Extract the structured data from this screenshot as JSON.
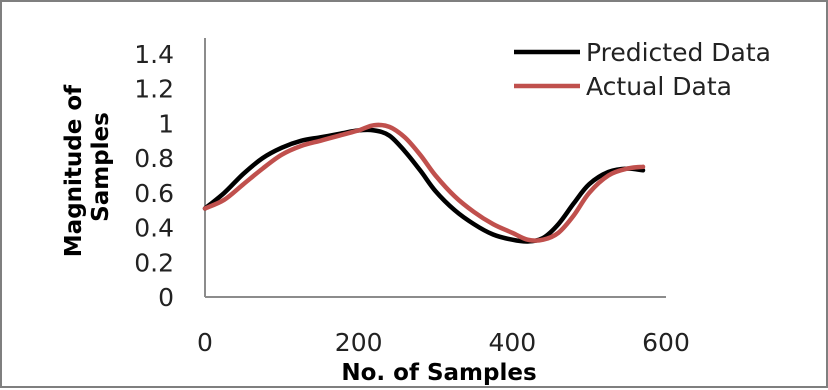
{
  "chart_data": {
    "type": "line",
    "title": "",
    "xlabel": "No. of Samples",
    "ylabel_lines": [
      "Magnitude of",
      "Samples"
    ],
    "xlim": [
      0,
      600
    ],
    "ylim": [
      0,
      1.4
    ],
    "x_ticks": [
      0,
      200,
      400,
      600
    ],
    "x_tick_labels": [
      "0",
      "200",
      "400",
      "600"
    ],
    "y_ticks": [
      0,
      0.2,
      0.4,
      0.6,
      0.8,
      1.0,
      1.2,
      1.4
    ],
    "y_tick_labels": [
      "0",
      "0.2",
      "0.4",
      "0.6",
      "0.8",
      "1",
      "1.2",
      "1.4"
    ],
    "grid": false,
    "legend_position": "top-right",
    "series": [
      {
        "name": "Predicted Data",
        "color": "#000000",
        "x": [
          0,
          25,
          50,
          75,
          100,
          125,
          150,
          175,
          200,
          220,
          240,
          260,
          280,
          300,
          325,
          350,
          375,
          400,
          420,
          440,
          460,
          480,
          500,
          525,
          550,
          570
        ],
        "y": [
          0.51,
          0.6,
          0.71,
          0.8,
          0.86,
          0.9,
          0.92,
          0.94,
          0.96,
          0.96,
          0.93,
          0.84,
          0.73,
          0.61,
          0.5,
          0.42,
          0.36,
          0.33,
          0.32,
          0.34,
          0.42,
          0.54,
          0.65,
          0.72,
          0.74,
          0.73
        ]
      },
      {
        "name": "Actual Data",
        "color": "#c0504d",
        "x": [
          0,
          25,
          50,
          75,
          100,
          125,
          150,
          175,
          200,
          220,
          240,
          260,
          280,
          300,
          325,
          350,
          375,
          400,
          420,
          440,
          460,
          480,
          500,
          525,
          550,
          570
        ],
        "y": [
          0.51,
          0.56,
          0.65,
          0.74,
          0.82,
          0.87,
          0.9,
          0.93,
          0.96,
          0.99,
          0.98,
          0.92,
          0.82,
          0.7,
          0.58,
          0.49,
          0.42,
          0.37,
          0.33,
          0.33,
          0.37,
          0.47,
          0.6,
          0.7,
          0.74,
          0.75
        ]
      }
    ]
  }
}
